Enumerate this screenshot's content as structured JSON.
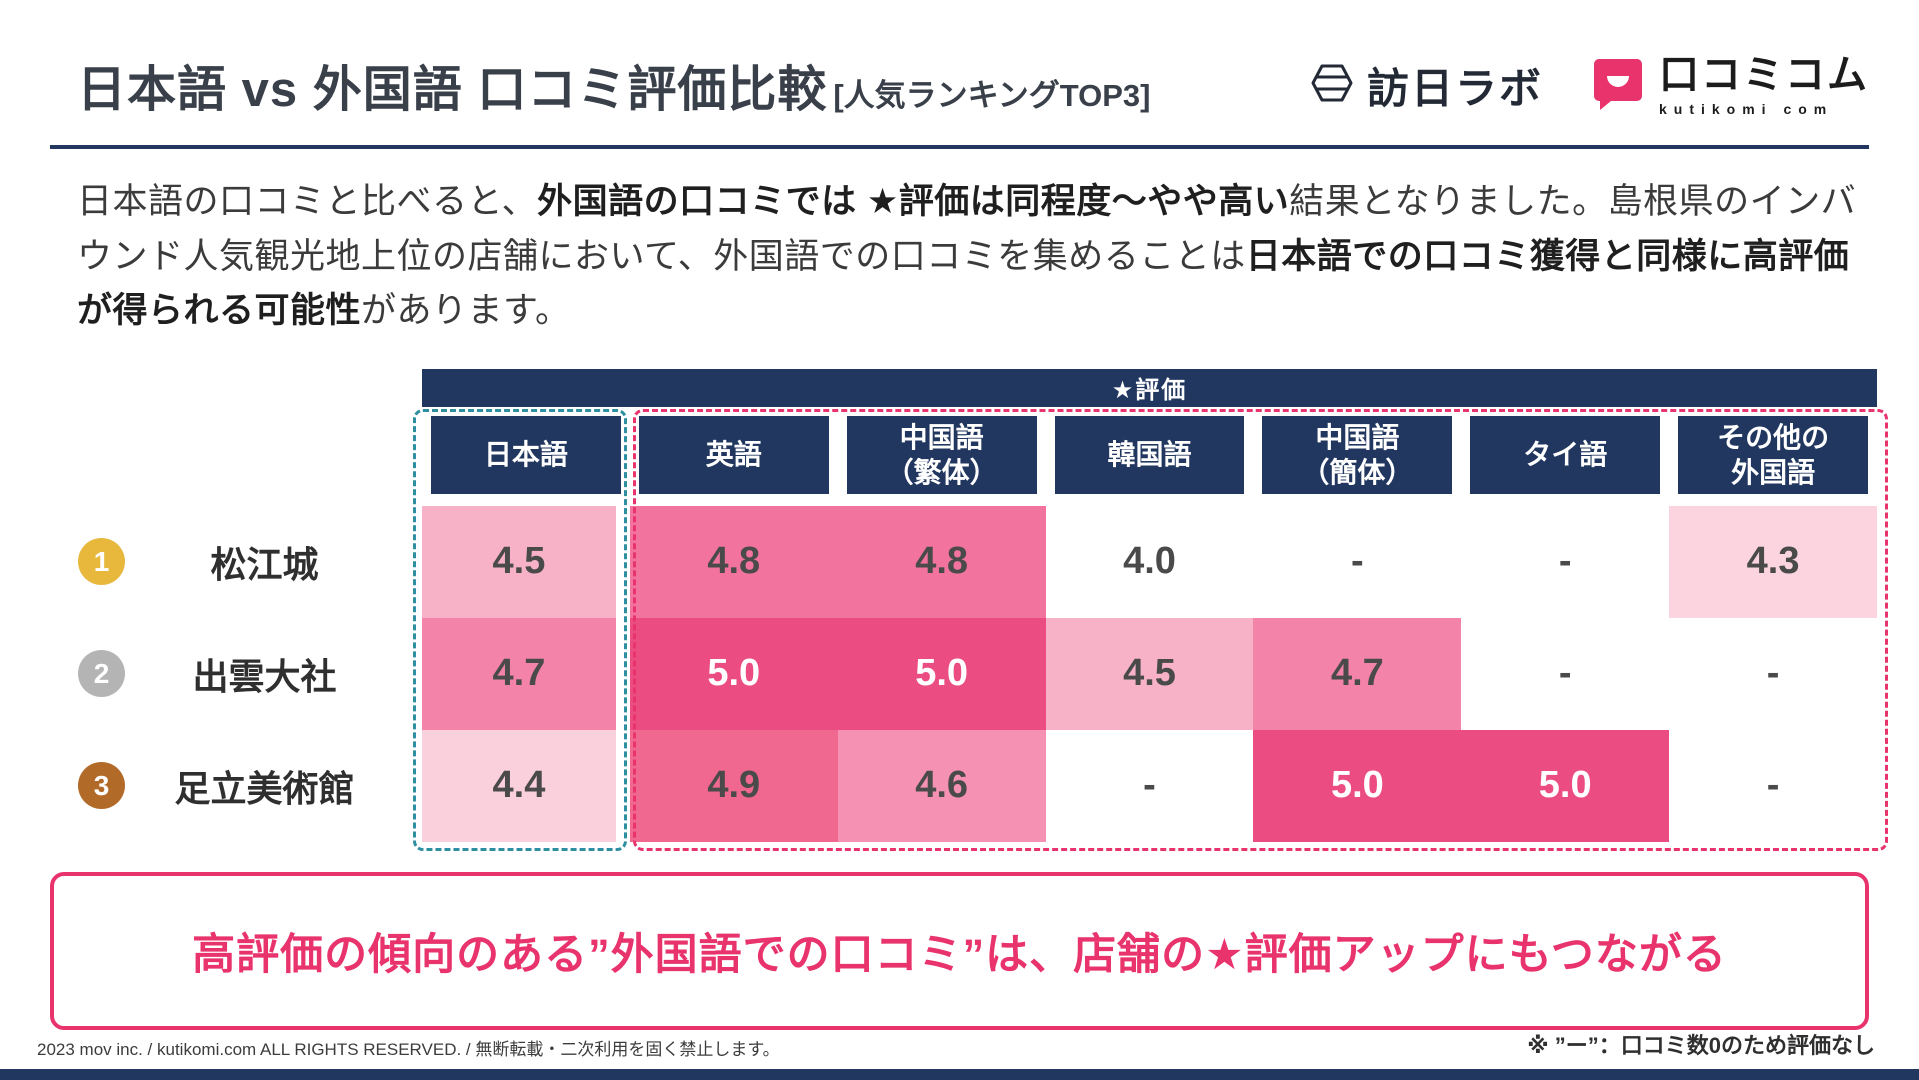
{
  "header": {
    "title": "日本語 vs 外国語 口コミ評価比較",
    "subtitle": "[人気ランキングTOP3]",
    "logo_hounichi": "訪日ラボ",
    "logo_kutikomi": "口コミコム",
    "logo_kutikomi_sub": "kutikomi com"
  },
  "intro": {
    "segments": [
      {
        "text": "日本語の口コミと比べると、",
        "bold": false
      },
      {
        "text": "外国語の口コミでは ★評価は同程度～やや高い",
        "bold": true
      },
      {
        "text": "結果となりました。島根県のインバウンド人気観光地上位の店舗において、外国語での口コミを集めることは",
        "bold": false
      },
      {
        "text": "日本語での口コミ獲得と同様に高評価が得られる可能性",
        "bold": true
      },
      {
        "text": "があります。",
        "bold": false
      }
    ]
  },
  "chart_data": {
    "type": "heatmap",
    "title": "★評価",
    "columns": [
      "日本語",
      "英語",
      "中国語\n（繁体）",
      "韓国語",
      "中国語\n（簡体）",
      "タイ語",
      "その他の\n外国語"
    ],
    "rows": [
      {
        "rank": "1",
        "rank_color": "#e7b83c",
        "name": "松江城",
        "values": [
          "4.5",
          "4.8",
          "4.8",
          "4.0",
          "-",
          "-",
          "4.3"
        ]
      },
      {
        "rank": "2",
        "rank_color": "#b4b4b4",
        "name": "出雲大社",
        "values": [
          "4.7",
          "5.0",
          "5.0",
          "4.5",
          "4.7",
          "-",
          "-"
        ]
      },
      {
        "rank": "3",
        "rank_color": "#b26a29",
        "name": "足立美術館",
        "values": [
          "4.4",
          "4.9",
          "4.6",
          "-",
          "5.0",
          "5.0",
          "-"
        ]
      }
    ],
    "color_scale": {
      "5.0": {
        "bg": "#eb4d83",
        "text": "#ffffff"
      },
      "4.9": {
        "bg": "#f0688f",
        "text": "#4a4a4a"
      },
      "4.8": {
        "bg": "#f1739e",
        "text": "#4a4a4a"
      },
      "4.7": {
        "bg": "#f383a9",
        "text": "#4a4a4a"
      },
      "4.6": {
        "bg": "#f592b3",
        "text": "#4a4a4a"
      },
      "4.5": {
        "bg": "#f7b2c8",
        "text": "#4a4a4a"
      },
      "4.4": {
        "bg": "#fbd0dd",
        "text": "#4a4a4a"
      },
      "4.3": {
        "bg": "#fbd4e0",
        "text": "#4a4a4a"
      },
      "4.0": {
        "bg": "#ffffff",
        "text": "#4a4a4a"
      },
      "-": {
        "bg": "#ffffff",
        "text": "#4a4a4a"
      }
    },
    "legend": {
      "japanese_box_color": "#2d8fa0",
      "foreign_box_color": "#e8336d"
    }
  },
  "callout": {
    "text": "高評価の傾向のある”外国語での口コミ”は、店舗の★評価アップにもつながる"
  },
  "footer": {
    "left": "2023 mov inc. / kutikomi.com ALL RIGHTS RESERVED. / 無断転載・二次利用を固く禁止します。",
    "right": "※ ”ー”：口コミ数0のため評価なし"
  },
  "colors": {
    "navy": "#21375f",
    "brand_pink": "#e8336d",
    "teal_dash": "#2d8fa0"
  }
}
